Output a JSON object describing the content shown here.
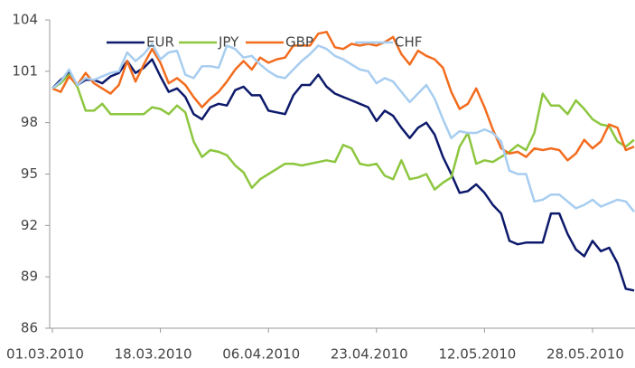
{
  "chart_data": {
    "type": "line",
    "categories": [
      "01.03.2010",
      null,
      null,
      null,
      null,
      null,
      null,
      null,
      null,
      null,
      null,
      null,
      null,
      "18.03.2010",
      null,
      null,
      null,
      null,
      null,
      null,
      null,
      null,
      null,
      null,
      null,
      null,
      "06.04.2010",
      null,
      null,
      null,
      null,
      null,
      null,
      null,
      null,
      null,
      null,
      null,
      null,
      "23.04.2010",
      null,
      null,
      null,
      null,
      null,
      null,
      null,
      null,
      null,
      null,
      null,
      null,
      "12.05.2010",
      null,
      null,
      null,
      null,
      null,
      null,
      null,
      null,
      null,
      null,
      null,
      null,
      "28.05.2010",
      null,
      null,
      null,
      null,
      null
    ],
    "series": [
      {
        "name": "EUR",
        "color": "#0d1a6b",
        "values": [
          100.0,
          100.5,
          100.9,
          100.2,
          100.5,
          100.5,
          100.3,
          100.7,
          100.9,
          101.6,
          100.9,
          101.2,
          101.7,
          100.7,
          99.8,
          100.0,
          99.5,
          98.5,
          98.2,
          98.9,
          99.1,
          99.0,
          99.9,
          100.1,
          99.6,
          99.6,
          98.7,
          98.6,
          98.5,
          99.6,
          100.2,
          100.2,
          100.8,
          100.1,
          99.7,
          99.5,
          99.3,
          99.1,
          98.9,
          98.1,
          98.7,
          98.4,
          97.7,
          97.1,
          97.7,
          98.0,
          97.3,
          96.0,
          95.0,
          93.9,
          94.0,
          94.4,
          93.9,
          93.2,
          92.7,
          91.1,
          90.9,
          91.0,
          91.0,
          91.0,
          92.7,
          92.7,
          91.5,
          90.6,
          90.2,
          91.1,
          90.5,
          90.7,
          89.8,
          88.3,
          88.2
        ]
      },
      {
        "name": "JPY",
        "color": "#8dc63f",
        "values": [
          100.0,
          100.3,
          100.8,
          100.1,
          98.7,
          98.7,
          99.1,
          98.5,
          98.5,
          98.5,
          98.5,
          98.5,
          98.9,
          98.8,
          98.5,
          99.0,
          98.6,
          96.9,
          96.0,
          96.4,
          96.3,
          96.1,
          95.5,
          95.1,
          94.2,
          94.7,
          95.0,
          95.3,
          95.6,
          95.6,
          95.5,
          95.6,
          95.7,
          95.8,
          95.7,
          96.7,
          96.5,
          95.6,
          95.5,
          95.6,
          94.9,
          94.7,
          95.8,
          94.7,
          94.8,
          95.0,
          94.1,
          94.5,
          94.8,
          96.6,
          97.4,
          95.6,
          95.8,
          95.7,
          96.0,
          96.3,
          96.7,
          96.4,
          97.4,
          99.7,
          99.0,
          99.0,
          98.5,
          99.3,
          98.8,
          98.2,
          97.9,
          97.8,
          96.9,
          96.6,
          97.0
        ]
      },
      {
        "name": "GBP",
        "color": "#f26c1e",
        "values": [
          100.0,
          99.8,
          100.7,
          100.2,
          100.9,
          100.3,
          100.0,
          99.7,
          100.2,
          101.6,
          100.4,
          101.4,
          102.3,
          101.5,
          100.3,
          100.6,
          100.2,
          99.5,
          98.9,
          99.4,
          99.8,
          100.4,
          101.1,
          101.6,
          101.1,
          101.8,
          101.5,
          101.7,
          101.8,
          102.5,
          102.5,
          102.5,
          103.2,
          103.3,
          102.4,
          102.3,
          102.6,
          102.5,
          102.6,
          102.5,
          102.7,
          103.0,
          102.0,
          101.4,
          102.2,
          101.9,
          101.7,
          101.2,
          99.8,
          98.8,
          99.1,
          100.0,
          98.9,
          97.6,
          96.5,
          96.2,
          96.3,
          96.0,
          96.5,
          96.4,
          96.5,
          96.4,
          95.8,
          96.2,
          97.0,
          96.5,
          96.9,
          97.9,
          97.7,
          96.4,
          96.6
        ]
      },
      {
        "name": "CHF",
        "color": "#a7cdf0",
        "values": [
          100.0,
          100.4,
          101.1,
          100.2,
          100.6,
          100.5,
          100.7,
          100.9,
          101.0,
          102.1,
          101.6,
          102.0,
          102.6,
          101.7,
          102.1,
          102.2,
          100.8,
          100.6,
          101.3,
          101.3,
          101.2,
          102.5,
          102.3,
          101.8,
          101.9,
          101.4,
          101.0,
          100.7,
          100.6,
          101.1,
          101.6,
          102.0,
          102.5,
          102.3,
          101.9,
          101.7,
          101.4,
          101.1,
          101.0,
          100.3,
          100.6,
          100.4,
          99.8,
          99.2,
          99.7,
          100.2,
          99.4,
          98.2,
          97.1,
          97.5,
          97.4,
          97.4,
          97.6,
          97.4,
          96.9,
          95.2,
          95.0,
          95.0,
          93.4,
          93.5,
          93.8,
          93.8,
          93.4,
          93.0,
          93.2,
          93.5,
          93.1,
          93.3,
          93.5,
          93.4,
          92.8
        ]
      }
    ],
    "ylim": [
      86,
      104
    ],
    "yticks": [
      86,
      89,
      92,
      95,
      98,
      101,
      104
    ],
    "grid": false,
    "legend": "top"
  }
}
